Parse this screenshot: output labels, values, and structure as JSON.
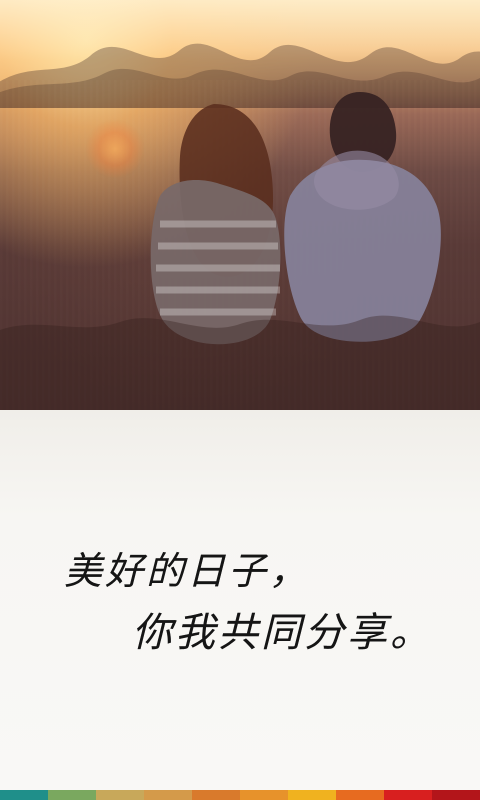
{
  "message": {
    "line1": "美好的日子，",
    "line2": "你我共同分享。"
  },
  "colors": {
    "bar": [
      "#1f8f8a",
      "#7aa85f",
      "#c8a85a",
      "#d49a4a",
      "#d97a2c",
      "#e7922b",
      "#f0b21f",
      "#e76b20",
      "#d81f1f",
      "#b3151a"
    ]
  }
}
